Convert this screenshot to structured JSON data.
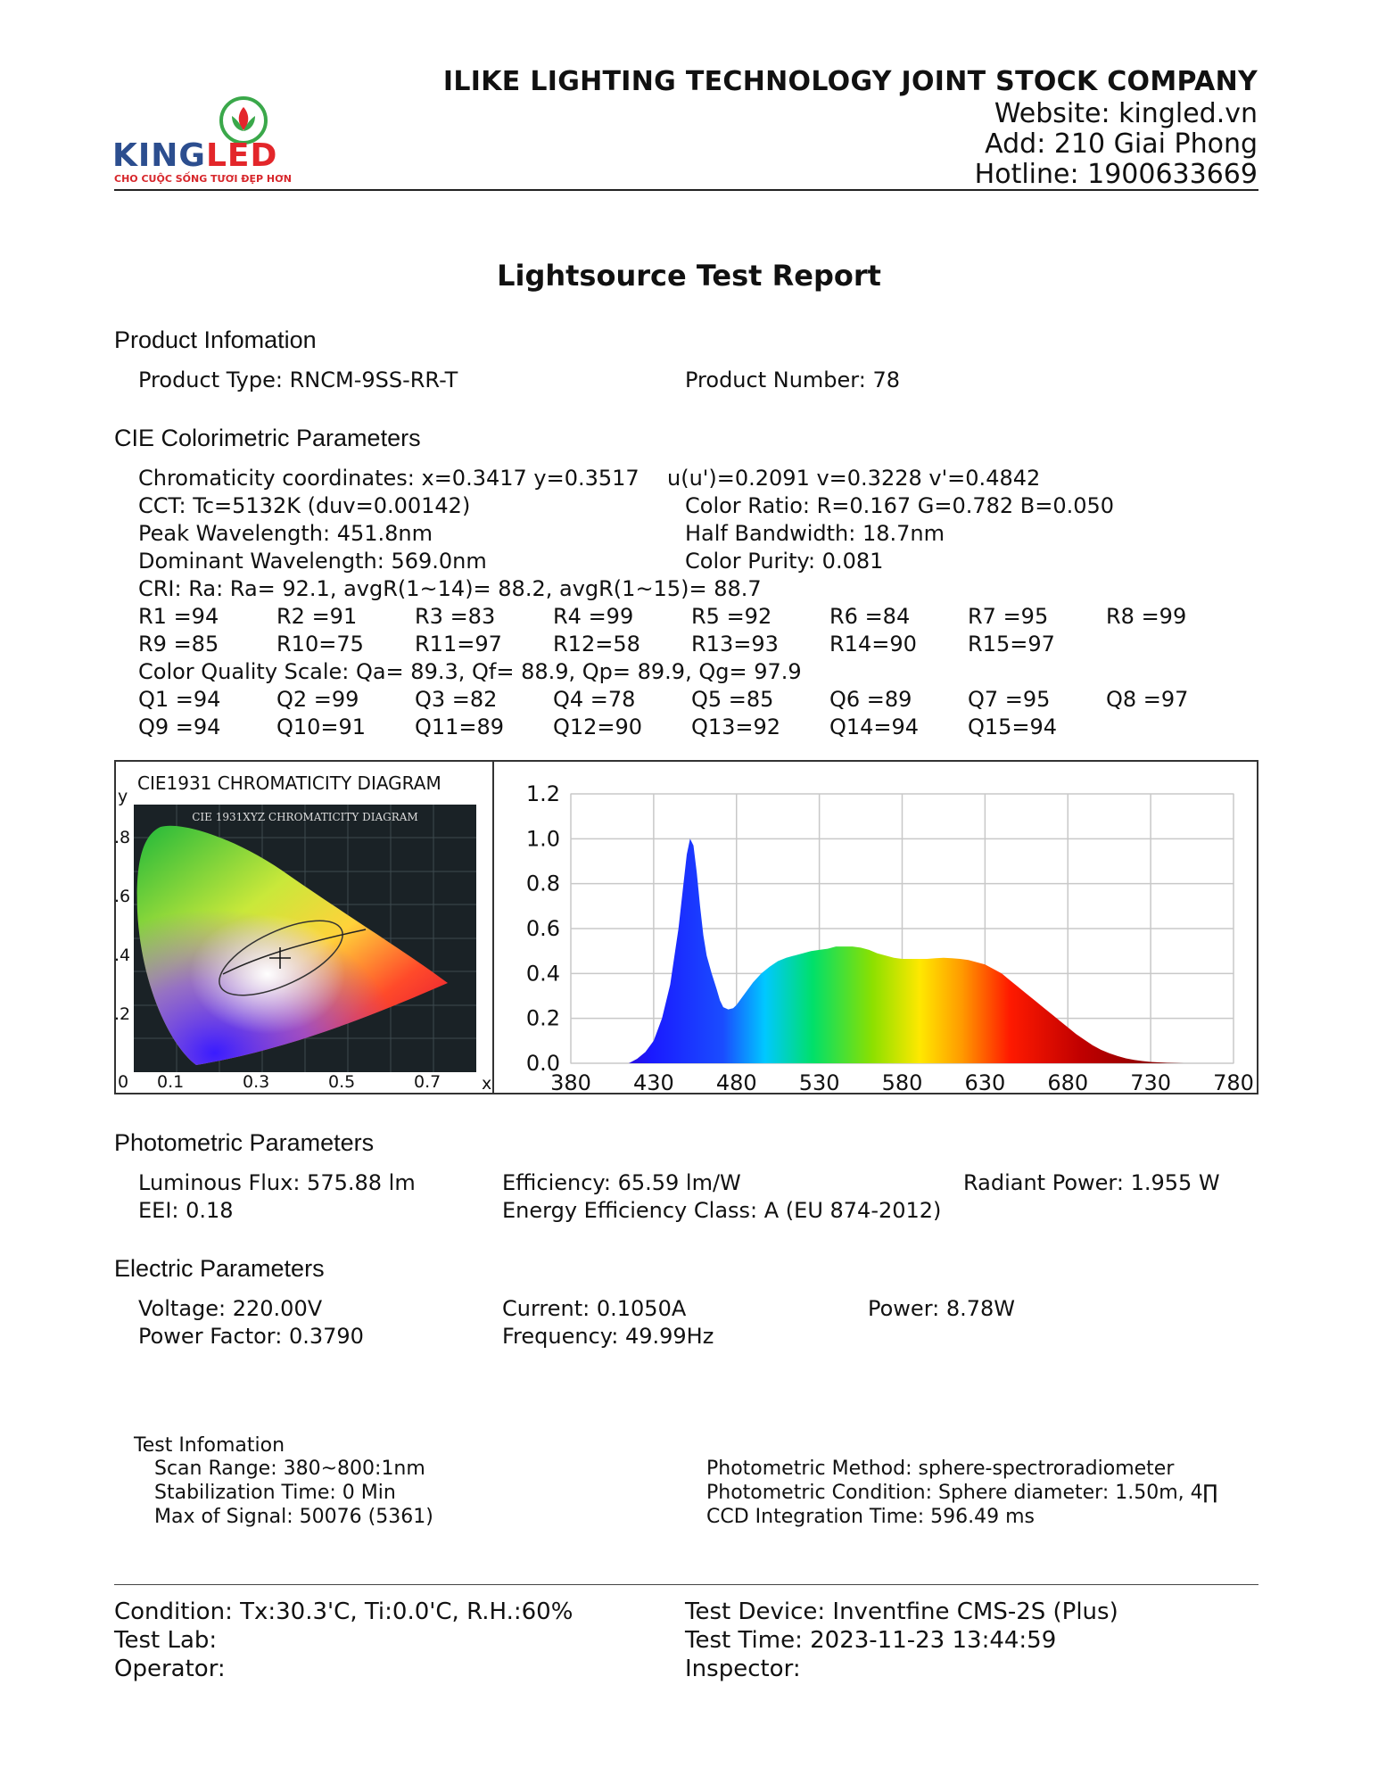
{
  "header": {
    "logo": {
      "brand_main": "KING",
      "brand_accent": "LED",
      "tagline": "CHO CUỘC SỐNG TƯƠI ĐẸP HƠN"
    },
    "company": "ILIKE LIGHTING TECHNOLOGY JOINT STOCK COMPANY",
    "website": "Website: kingled.vn",
    "address": "Add: 210 Giai Phong",
    "hotline": "Hotline: 1900633669"
  },
  "title": "Lightsource Test Report",
  "product": {
    "heading": "Product Infomation",
    "type": "Product Type: RNCM-9SS-RR-T",
    "number": "Product Number: 78"
  },
  "cie": {
    "heading": "CIE Colorimetric Parameters",
    "chromaticity": "Chromaticity coordinates: x=0.3417 y=0.3517",
    "uv": "u(u')=0.2091 v=0.3228 v'=0.4842",
    "cct": "CCT: Tc=5132K (duv=0.00142)",
    "color_ratio": "Color Ratio: R=0.167  G=0.782  B=0.050",
    "peak": "Peak Wavelength: 451.8nm",
    "half_bw": "Half Bandwidth: 18.7nm",
    "dominant": "Dominant Wavelength: 569.0nm",
    "purity": "Color Purity: 0.081",
    "cri": "CRI: Ra: Ra= 92.1, avgR(1~14)= 88.2, avgR(1~15)= 88.7",
    "r_values": [
      "R1 =94",
      "R2 =91",
      "R3 =83",
      "R4 =99",
      "R5 =92",
      "R6 =84",
      "R7 =95",
      "R8 =99",
      "R9 =85",
      "R10=75",
      "R11=97",
      "R12=58",
      "R13=93",
      "R14=90",
      "R15=97"
    ],
    "cqs": "Color Quality Scale: Qa= 89.3, Qf= 88.9, Qp= 89.9, Qg= 97.9",
    "q_values": [
      "Q1 =94",
      "Q2 =99",
      "Q3 =82",
      "Q4 =78",
      "Q5 =85",
      "Q6 =89",
      "Q7 =95",
      "Q8 =97",
      "Q9 =94",
      "Q10=91",
      "Q11=89",
      "Q12=90",
      "Q13=92",
      "Q14=94",
      "Q15=94"
    ]
  },
  "cie_diagram": {
    "title": "CIE1931 CHROMATICITY DIAGRAM",
    "inner_title": "CIE 1931XYZ CHROMATICITY DIAGRAM",
    "y_axis_label": "y",
    "x_axis_label": "x",
    "y_ticks": [
      ".8",
      ".6",
      ".4",
      ".2"
    ],
    "x_ticks": [
      "0",
      "0.1",
      "0.3",
      "0.5",
      "0.7"
    ]
  },
  "chart_data": {
    "type": "area",
    "title": "",
    "xlabel": "",
    "ylabel": "",
    "x_ticks": [
      "380",
      "430",
      "480",
      "530",
      "580",
      "630",
      "680",
      "730",
      "780"
    ],
    "y_ticks": [
      "0.0",
      "0.2",
      "0.4",
      "0.6",
      "0.8",
      "1.0",
      "1.2"
    ],
    "xlim": [
      380,
      780
    ],
    "ylim": [
      0,
      1.2
    ],
    "grid": true,
    "x": [
      415,
      420,
      425,
      430,
      435,
      440,
      445,
      448,
      450,
      452,
      454,
      456,
      458,
      460,
      462,
      465,
      468,
      470,
      472,
      475,
      478,
      480,
      482,
      485,
      490,
      495,
      500,
      505,
      510,
      515,
      520,
      525,
      530,
      535,
      540,
      545,
      550,
      555,
      560,
      565,
      570,
      575,
      580,
      585,
      590,
      595,
      600,
      605,
      610,
      615,
      620,
      625,
      630,
      635,
      640,
      645,
      650,
      655,
      660,
      665,
      670,
      675,
      680,
      685,
      690,
      695,
      700,
      705,
      710,
      715,
      720,
      725,
      730,
      735,
      740,
      745,
      750,
      755,
      760,
      765,
      770
    ],
    "values": [
      0.0,
      0.02,
      0.05,
      0.1,
      0.2,
      0.35,
      0.6,
      0.8,
      0.93,
      1.0,
      0.97,
      0.85,
      0.7,
      0.57,
      0.48,
      0.4,
      0.33,
      0.28,
      0.25,
      0.24,
      0.245,
      0.26,
      0.28,
      0.31,
      0.36,
      0.4,
      0.43,
      0.455,
      0.47,
      0.48,
      0.49,
      0.5,
      0.505,
      0.51,
      0.52,
      0.52,
      0.52,
      0.515,
      0.505,
      0.49,
      0.48,
      0.47,
      0.465,
      0.465,
      0.465,
      0.465,
      0.468,
      0.47,
      0.468,
      0.465,
      0.46,
      0.45,
      0.44,
      0.42,
      0.4,
      0.37,
      0.34,
      0.31,
      0.28,
      0.25,
      0.22,
      0.19,
      0.16,
      0.13,
      0.105,
      0.08,
      0.06,
      0.045,
      0.032,
      0.022,
      0.015,
      0.01,
      0.006,
      0.004,
      0.002,
      0.001,
      0.0,
      0.0,
      0.0,
      0.0,
      0.0
    ]
  },
  "photometric": {
    "heading": "Photometric Parameters",
    "flux": "Luminous Flux: 575.88 lm",
    "efficiency": "Efficiency: 65.59 lm/W",
    "radiant": "Radiant Power: 1.955 W",
    "eei": "EEI:  0.18",
    "energy_class": "Energy Efficiency Class: A (EU 874-2012)"
  },
  "electric": {
    "heading": "Electric Parameters",
    "voltage": "Voltage: 220.00V",
    "current": "Current: 0.1050A",
    "power": "Power: 8.78W",
    "pf": "Power Factor: 0.3790",
    "frequency": "Frequency: 49.99Hz"
  },
  "test_info": {
    "heading": "Test Infomation",
    "scan_range": "Scan Range: 380~800:1nm",
    "stabilization": "Stabilization Time: 0 Min",
    "max_signal": "Max of Signal: 50076 (5361)",
    "method": "Photometric Method: sphere-spectroradiometer",
    "condition": "Photometric Condition: Sphere diameter: 1.50m, 4∏",
    "ccd": "CCD Integration Time: 596.49 ms"
  },
  "footer": {
    "condition": "Condition: Tx:30.3'C, Ti:0.0'C, R.H.:60%",
    "device": "Test Device: Inventfine CMS-2S (Plus)",
    "lab": "Test Lab:",
    "time": "Test Time: 2023-11-23 13:44:59",
    "operator": "Operator:",
    "inspector": "Inspector:"
  }
}
